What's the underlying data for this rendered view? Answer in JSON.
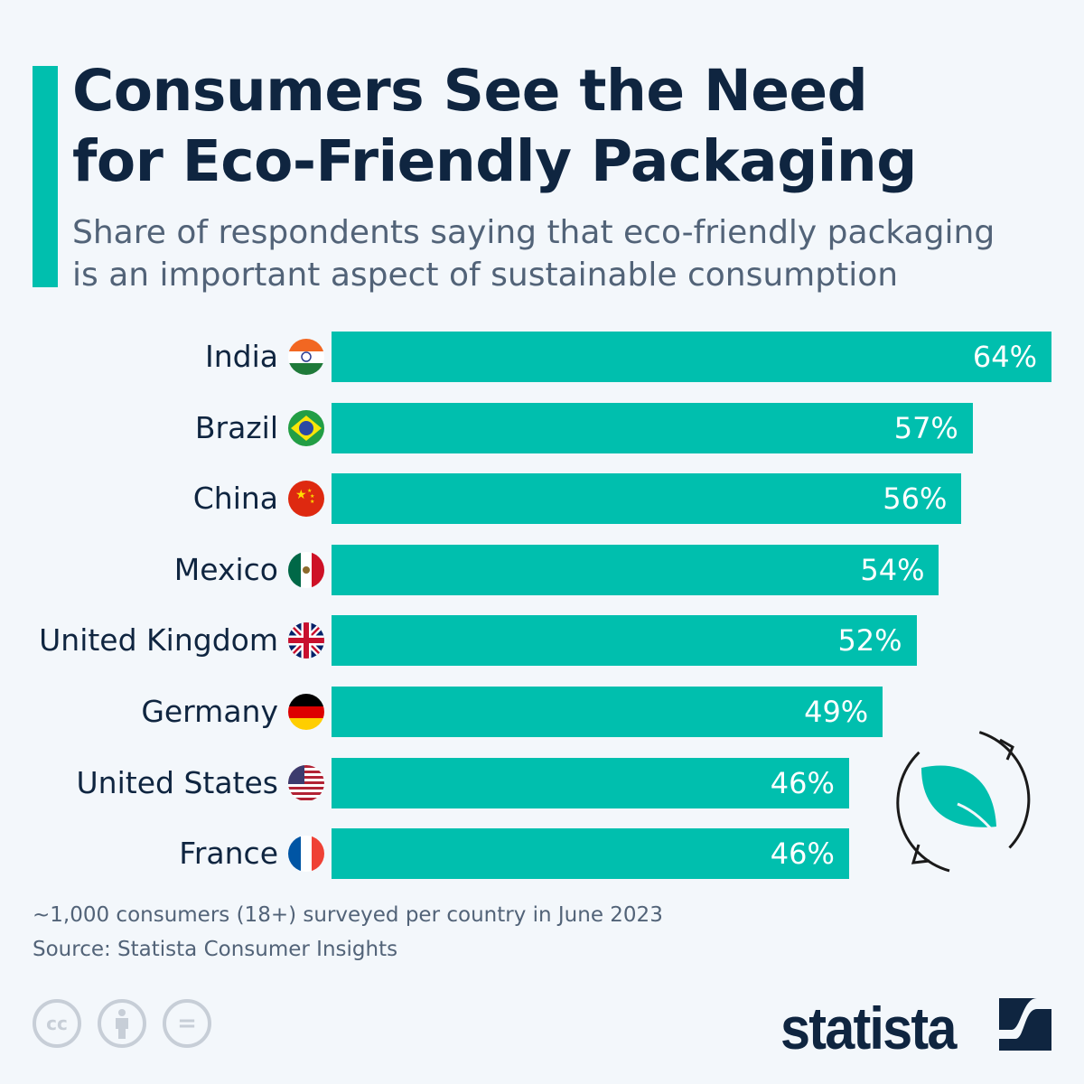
{
  "title_lines": [
    "Consumers See the Need",
    "for Eco-Friendly Packaging"
  ],
  "subtitle_lines": [
    "Share of respondents saying that eco-friendly packaging",
    "is an important aspect of sustainable consumption"
  ],
  "chart_data": {
    "type": "bar",
    "orientation": "horizontal",
    "categories": [
      "India",
      "Brazil",
      "China",
      "Mexico",
      "United Kingdom",
      "Germany",
      "United States",
      "France"
    ],
    "values": [
      64,
      57,
      56,
      54,
      52,
      49,
      46,
      46
    ],
    "value_labels": [
      "64%",
      "57%",
      "56%",
      "54%",
      "52%",
      "49%",
      "46%",
      "46%"
    ],
    "unit": "%",
    "bar_color": "#00bfae",
    "xlim": [
      0,
      64
    ],
    "grid": false
  },
  "flags": [
    "india-flag",
    "brazil-flag",
    "china-flag",
    "mexico-flag",
    "uk-flag",
    "germany-flag",
    "usa-flag",
    "france-flag"
  ],
  "footnote": "~1,000 consumers (18+) surveyed per country in June 2023",
  "source": "Source: Statista Consumer Insights",
  "license_icons": [
    "cc-icon",
    "attribution-icon",
    "no-derivatives-icon"
  ],
  "license_text": {
    "cc": "cc",
    "eq": "="
  },
  "logo": "statista",
  "colors": {
    "accent": "#00bfae",
    "title": "#0f2540",
    "subtitle": "#526378",
    "background": "#f3f7fb"
  }
}
